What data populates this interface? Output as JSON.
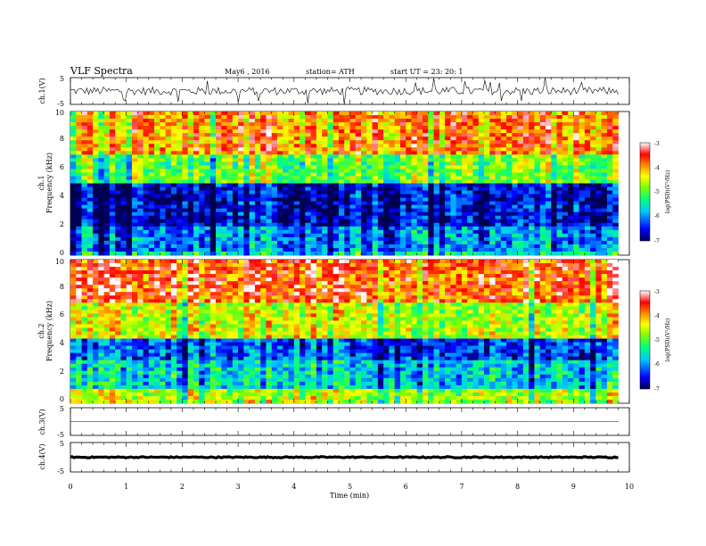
{
  "header": {
    "title": "VLF  Spectra",
    "date": "May6  , 2016",
    "station": "station= ATH",
    "start": "start  UT  =    23: 20: 1"
  },
  "chart_data": [
    {
      "type": "line",
      "panel": "ch1-waveform",
      "ylabel": "ch.1(V)",
      "ylim": [
        -5,
        5
      ],
      "yticks": [
        "5",
        "-5"
      ],
      "xlim": [
        0,
        10
      ],
      "description_values": {
        "baseline": 0,
        "typical_amplitude": 1.5,
        "spike_amplitude": 5
      }
    },
    {
      "type": "heatmap",
      "panel": "ch1-spectrogram",
      "ylabel_lines": [
        "ch.1",
        "Frequency  (kHz)"
      ],
      "ylim": [
        0,
        10
      ],
      "yticks": [
        "0",
        "2",
        "4",
        "6",
        "8",
        "10"
      ],
      "xlim": [
        0,
        9.8
      ],
      "colorbar": {
        "label": "log(PSD)(V²/Hz)",
        "range": [
          -7,
          -3
        ],
        "ticks": [
          "-3",
          "-4",
          "-5",
          "-6",
          "-7"
        ]
      },
      "bands": [
        {
          "from_khz": 0,
          "to_khz": 0.3,
          "level": -5.5
        },
        {
          "from_khz": 0.3,
          "to_khz": 2.0,
          "level": -6.0
        },
        {
          "from_khz": 2.0,
          "to_khz": 5.0,
          "level": -6.6
        },
        {
          "from_khz": 5.0,
          "to_khz": 7.0,
          "level": -4.9
        },
        {
          "from_khz": 7.0,
          "to_khz": 10.0,
          "level": -3.9
        }
      ]
    },
    {
      "type": "heatmap",
      "panel": "ch2-spectrogram",
      "ylabel_lines": [
        "ch.2",
        "Frequency  (kHz)"
      ],
      "ylim": [
        0,
        10
      ],
      "yticks": [
        "0",
        "2",
        "4",
        "6",
        "8",
        "10"
      ],
      "xlim": [
        0,
        9.8
      ],
      "colorbar": {
        "label": "log(PSD)(V²/Hz)",
        "range": [
          -7,
          -3
        ],
        "ticks": [
          "-3",
          "-4",
          "-5",
          "-6",
          "-7"
        ]
      },
      "bands": [
        {
          "from_khz": 0,
          "to_khz": 1.0,
          "level": -4.6
        },
        {
          "from_khz": 1.0,
          "to_khz": 3.0,
          "level": -5.6
        },
        {
          "from_khz": 3.0,
          "to_khz": 4.5,
          "level": -6.2
        },
        {
          "from_khz": 4.5,
          "to_khz": 7.0,
          "level": -4.5
        },
        {
          "from_khz": 7.0,
          "to_khz": 10.0,
          "level": -3.6
        }
      ]
    },
    {
      "type": "line",
      "panel": "ch3-waveform",
      "ylabel": "ch.3(V)",
      "ylim": [
        -5,
        5
      ],
      "yticks": [
        "5",
        "-5"
      ],
      "xlim": [
        0,
        10
      ],
      "description_values": {
        "baseline": 0,
        "typical_amplitude": 0.1
      }
    },
    {
      "type": "line",
      "panel": "ch4-waveform",
      "ylabel": "ch.4(V)",
      "ylim": [
        -5,
        5
      ],
      "yticks": [
        "5",
        "-5"
      ],
      "xlim": [
        0,
        10
      ],
      "description_values": {
        "baseline": 0,
        "typical_amplitude": 0.2
      },
      "xlabel": "Time  (min)",
      "xticks": [
        "0",
        "1",
        "2",
        "3",
        "4",
        "5",
        "6",
        "7",
        "8",
        "9",
        "10"
      ]
    }
  ],
  "colors": {
    "colormap": [
      "#000060",
      "#0000ff",
      "#00ffff",
      "#00ff00",
      "#ffff00",
      "#ff8000",
      "#ff0000",
      "#ffffff"
    ]
  }
}
